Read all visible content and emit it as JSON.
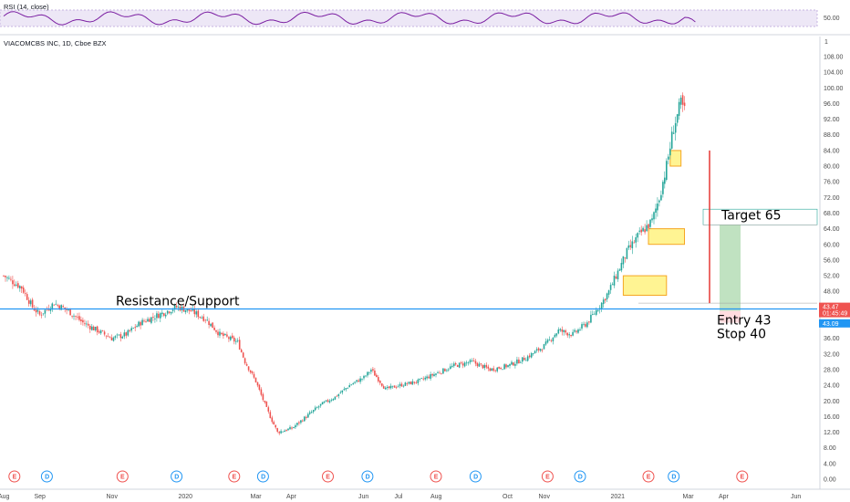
{
  "symbol_title": "VIACOMCBS INC, 1D, Cboe BZX",
  "rsi_label": "RSI (14, close)",
  "rsi_level_label": "50.00",
  "scale_marker": "1",
  "price_badges": {
    "last": "43.47",
    "countdown": "01:45:49",
    "prev": "43.09"
  },
  "colors": {
    "up": "#26a69a",
    "down": "#ef5350",
    "level": "#2196f3",
    "rsi": "#7b1fa2",
    "zone": "#ffeb3b",
    "zone_border": "#f5a623",
    "target": "#a5d6a7",
    "stop": "#ffcdd2",
    "earnings": "#ef5350",
    "dividend": "#2196f3"
  },
  "annotations": {
    "resistance_label": "Resistance/Support",
    "target_label": "Target 65",
    "entry_label": "Entry 43",
    "stop_label": "Stop 40"
  },
  "events": [
    {
      "type": "E",
      "month": 0.3
    },
    {
      "type": "D",
      "month": 1.2
    },
    {
      "type": "E",
      "month": 3.3
    },
    {
      "type": "D",
      "month": 4.8
    },
    {
      "type": "E",
      "month": 6.4
    },
    {
      "type": "D",
      "month": 7.2
    },
    {
      "type": "E",
      "month": 9.0
    },
    {
      "type": "D",
      "month": 10.1
    },
    {
      "type": "E",
      "month": 12.0
    },
    {
      "type": "D",
      "month": 13.1
    },
    {
      "type": "E",
      "month": 15.1
    },
    {
      "type": "D",
      "month": 16.0
    },
    {
      "type": "E",
      "month": 17.9
    },
    {
      "type": "D",
      "month": 18.6
    },
    {
      "type": "E",
      "month": 20.5
    }
  ],
  "chart_data": {
    "type": "candlestick",
    "title": "VIACOMCBS INC, 1D, Cboe BZX",
    "x_tick_labels": [
      "Aug",
      "Sep",
      "Nov",
      "2020",
      "Mar",
      "Apr",
      "Jun",
      "Jul",
      "Aug",
      "Oct",
      "Nov",
      "2021",
      "Mar",
      "Apr",
      "Jun"
    ],
    "x_tick_months": [
      0,
      1,
      3,
      5,
      7,
      8,
      10,
      11,
      12,
      14,
      15,
      17,
      19,
      20,
      22
    ],
    "x_range_months": [
      0,
      23
    ],
    "y_range": [
      0,
      112
    ],
    "y_tick_labels": [
      "0.00",
      "4.00",
      "8.00",
      "12.00",
      "16.00",
      "20.00",
      "24.00",
      "28.00",
      "32.00",
      "36.00",
      "40.00",
      "44.00",
      "48.00",
      "52.00",
      "56.00",
      "60.00",
      "64.00",
      "68.00",
      "72.00",
      "76.00",
      "80.00",
      "84.00",
      "88.00",
      "92.00",
      "96.00",
      "100.00",
      "104.00",
      "108.00"
    ],
    "y_ticks": [
      0,
      4,
      8,
      12,
      16,
      20,
      24,
      28,
      32,
      36,
      40,
      44,
      48,
      52,
      56,
      60,
      64,
      68,
      72,
      76,
      80,
      84,
      88,
      92,
      96,
      100,
      104,
      108
    ],
    "price_path": [
      [
        0.0,
        52
      ],
      [
        0.5,
        49
      ],
      [
        0.8,
        44
      ],
      [
        1.0,
        42
      ],
      [
        1.4,
        45
      ],
      [
        1.8,
        43
      ],
      [
        2.2,
        40
      ],
      [
        2.6,
        38
      ],
      [
        3.0,
        36
      ],
      [
        3.4,
        37
      ],
      [
        3.8,
        40
      ],
      [
        4.3,
        42
      ],
      [
        4.8,
        44
      ],
      [
        5.2,
        43
      ],
      [
        5.6,
        41
      ],
      [
        6.0,
        37
      ],
      [
        6.5,
        35
      ],
      [
        6.7,
        30
      ],
      [
        7.0,
        25
      ],
      [
        7.3,
        18
      ],
      [
        7.6,
        12
      ],
      [
        8.0,
        13
      ],
      [
        8.4,
        16
      ],
      [
        8.8,
        19
      ],
      [
        9.2,
        21
      ],
      [
        9.6,
        24
      ],
      [
        10.0,
        26
      ],
      [
        10.2,
        28
      ],
      [
        10.6,
        23
      ],
      [
        11.0,
        24
      ],
      [
        11.5,
        25
      ],
      [
        12.0,
        27
      ],
      [
        12.5,
        29
      ],
      [
        13.0,
        30
      ],
      [
        13.5,
        28
      ],
      [
        14.0,
        29
      ],
      [
        14.5,
        31
      ],
      [
        15.0,
        34
      ],
      [
        15.4,
        38
      ],
      [
        15.8,
        37
      ],
      [
        16.2,
        40
      ],
      [
        16.6,
        45
      ],
      [
        16.8,
        48
      ],
      [
        17.0,
        52
      ],
      [
        17.3,
        58
      ],
      [
        17.6,
        62
      ],
      [
        18.0,
        66
      ],
      [
        18.2,
        72
      ],
      [
        18.4,
        80
      ],
      [
        18.6,
        90
      ],
      [
        18.8,
        96
      ],
      [
        18.95,
        93
      ],
      [
        19.05,
        70
      ],
      [
        19.15,
        45
      ]
    ],
    "zones": [
      {
        "low": 47,
        "high": 52,
        "start_month": 17.2,
        "end_month": 18.4
      },
      {
        "low": 60,
        "high": 64,
        "start_month": 17.9,
        "end_month": 18.9
      },
      {
        "low": 80,
        "high": 84,
        "start_month": 18.5,
        "end_month": 18.8
      }
    ],
    "resistance_level": 43.5,
    "position": {
      "entry": 43,
      "target": 65,
      "stop": 40
    },
    "rsi": {
      "level": 50,
      "range": [
        0,
        100
      ]
    }
  }
}
